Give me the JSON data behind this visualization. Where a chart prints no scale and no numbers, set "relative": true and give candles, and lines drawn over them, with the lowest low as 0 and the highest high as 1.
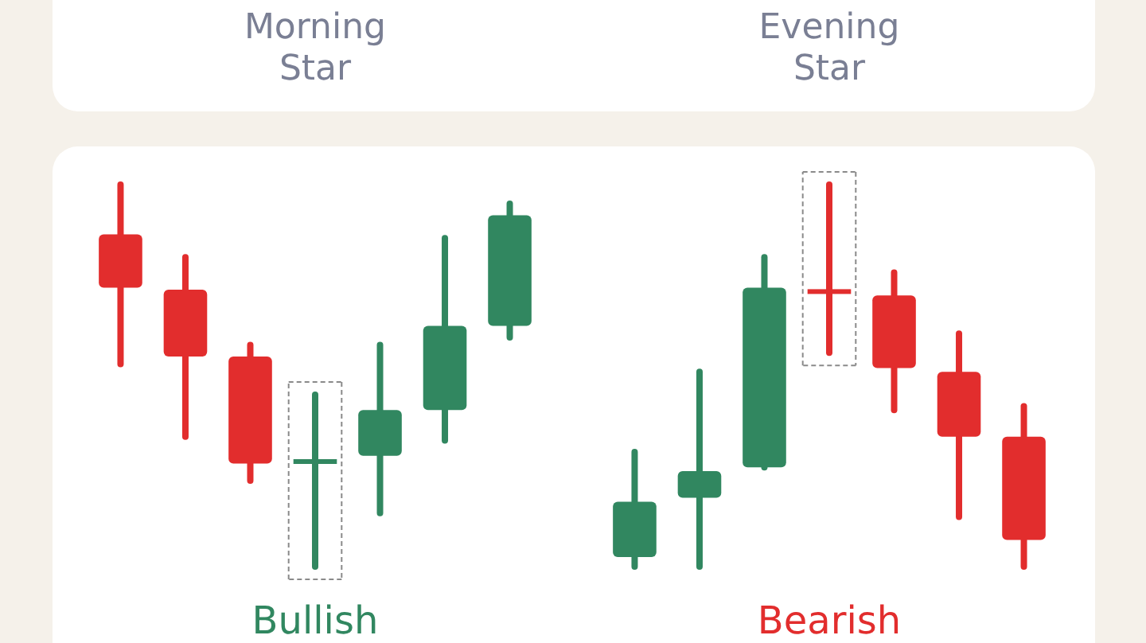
{
  "chart_data": [
    {
      "type": "candlestick",
      "title": "Morning Star",
      "xlabel": "Bullish",
      "relative": true,
      "categories": [
        null,
        null,
        null,
        null,
        null,
        null,
        null
      ],
      "ohlc": [
        [
          0.87,
          1.0,
          0.53,
          0.73
        ],
        [
          0.725,
          0.81,
          0.34,
          0.55
        ],
        [
          0.55,
          0.58,
          0.225,
          0.27
        ],
        [
          0.275,
          0.45,
          0.0,
          0.275
        ],
        [
          0.29,
          0.58,
          0.14,
          0.41
        ],
        [
          0.41,
          0.86,
          0.33,
          0.63
        ],
        [
          0.63,
          0.95,
          0.6,
          0.92
        ]
      ],
      "colors": [
        "#e22d2d",
        "#e22d2d",
        "#e22d2d",
        "#318760",
        "#318760",
        "#318760",
        "#318760"
      ]
    },
    {
      "type": "candlestick",
      "title": "Evening Star",
      "xlabel": "Bearish",
      "relative": true,
      "categories": [
        null,
        null,
        null,
        null,
        null,
        null,
        null
      ],
      "ohlc": [
        [
          0.025,
          0.3,
          0.0,
          0.17
        ],
        [
          0.18,
          0.51,
          0.0,
          0.25
        ],
        [
          0.26,
          0.81,
          0.26,
          0.73
        ],
        [
          0.725,
          1.0,
          0.56,
          0.715
        ],
        [
          0.71,
          0.77,
          0.41,
          0.52
        ],
        [
          0.51,
          0.61,
          0.13,
          0.34
        ],
        [
          0.34,
          0.42,
          0.0,
          0.07
        ]
      ],
      "colors": [
        "#318760",
        "#318760",
        "#318760",
        "#e22d2d",
        "#e22d2d",
        "#e22d2d",
        "#e22d2d"
      ]
    }
  ]
}
